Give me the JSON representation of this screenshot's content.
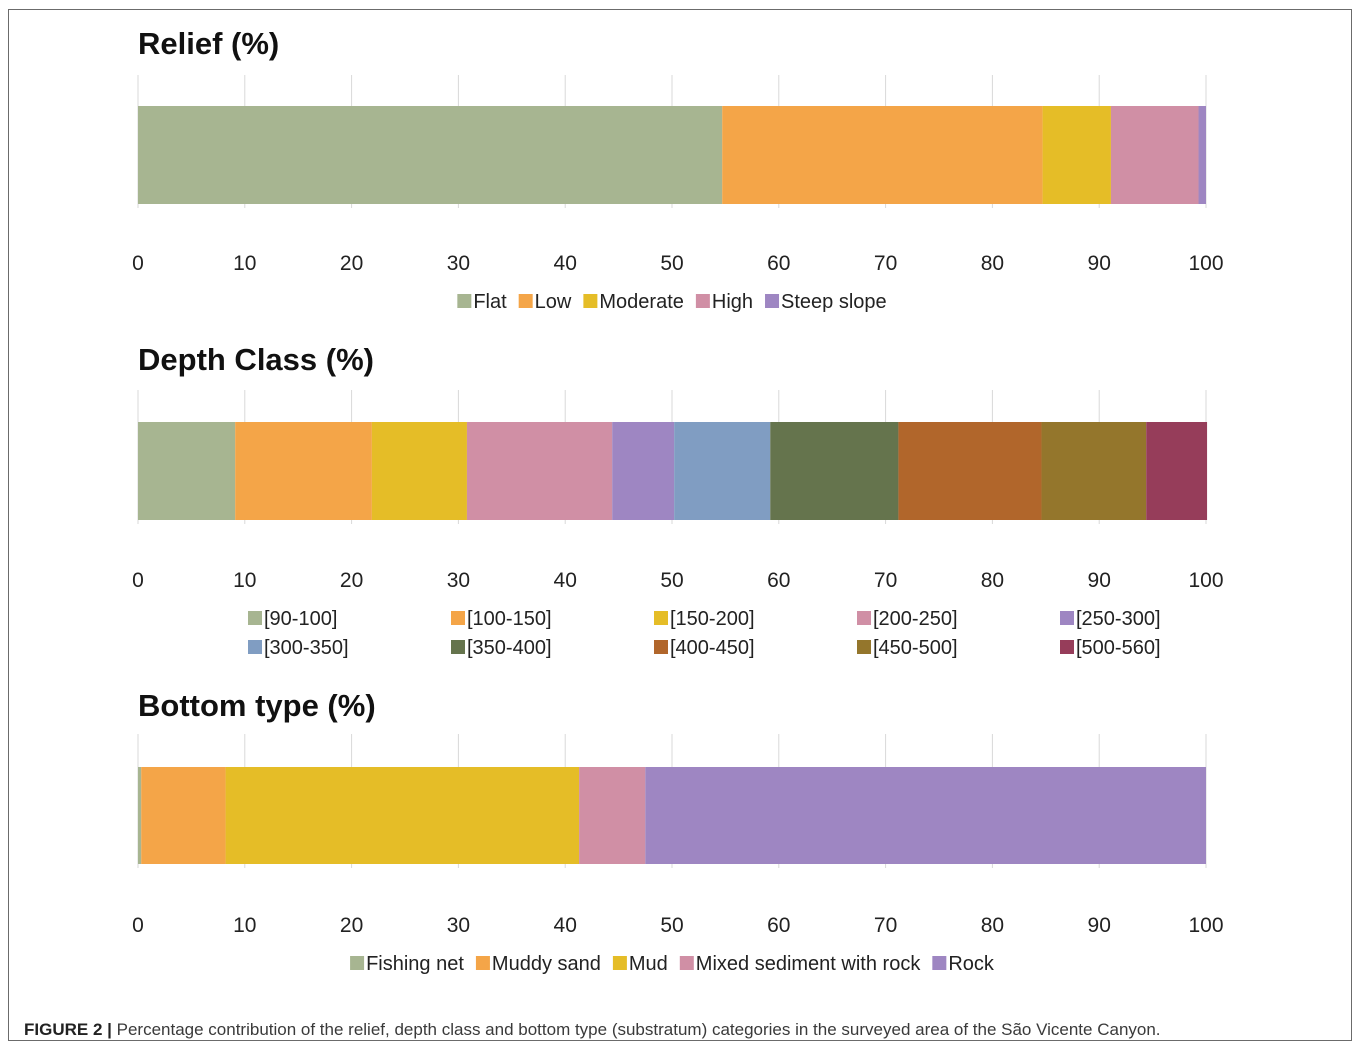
{
  "caption": {
    "label": "FIGURE 2 |",
    "text": "Percentage contribution of the relief, depth class and bottom type (substratum) categories in the surveyed area of the São Vicente Canyon."
  },
  "chart_data": [
    {
      "type": "bar",
      "orientation": "horizontal-stacked",
      "title": "Relief (%)",
      "xlim": [
        0,
        100
      ],
      "xticks": [
        0,
        10,
        20,
        30,
        40,
        50,
        60,
        70,
        80,
        90,
        100
      ],
      "grid": true,
      "legend_position": "bottom",
      "series": [
        {
          "name": "Flat",
          "value": 54.7,
          "color": "#a7b591"
        },
        {
          "name": "Low",
          "value": 30.0,
          "color": "#f4a548"
        },
        {
          "name": "Moderate",
          "value": 6.4,
          "color": "#e5bd27"
        },
        {
          "name": "High",
          "value": 8.2,
          "color": "#d08fa5"
        },
        {
          "name": "Steep slope",
          "value": 0.7,
          "color": "#9e86c2"
        }
      ]
    },
    {
      "type": "bar",
      "orientation": "horizontal-stacked",
      "title": "Depth Class (%)",
      "xlim": [
        0,
        100
      ],
      "xticks": [
        0,
        10,
        20,
        30,
        40,
        50,
        60,
        70,
        80,
        90,
        100
      ],
      "grid": true,
      "legend_position": "bottom",
      "series": [
        {
          "name": "[90-100]",
          "value": 9.1,
          "color": "#a7b591"
        },
        {
          "name": "[100-150]",
          "value": 12.8,
          "color": "#f4a548"
        },
        {
          "name": "[150-200]",
          "value": 8.9,
          "color": "#e5bd27"
        },
        {
          "name": "[200-250]",
          "value": 13.6,
          "color": "#d08fa5"
        },
        {
          "name": "[250-300]",
          "value": 5.8,
          "color": "#9e86c2"
        },
        {
          "name": "[300-350]",
          "value": 9.0,
          "color": "#809dc2"
        },
        {
          "name": "[350-400]",
          "value": 12.0,
          "color": "#65744d"
        },
        {
          "name": "[400-450]",
          "value": 13.4,
          "color": "#b1662b"
        },
        {
          "name": "[450-500]",
          "value": 9.8,
          "color": "#94762c"
        },
        {
          "name": "[500-560]",
          "value": 5.7,
          "color": "#963d5a"
        }
      ]
    },
    {
      "type": "bar",
      "orientation": "horizontal-stacked",
      "title": "Bottom type (%)",
      "xlim": [
        0,
        100
      ],
      "xticks": [
        0,
        10,
        20,
        30,
        40,
        50,
        60,
        70,
        80,
        90,
        100
      ],
      "grid": true,
      "legend_position": "bottom",
      "series": [
        {
          "name": "Fishing net",
          "value": 0.3,
          "color": "#a7b591"
        },
        {
          "name": "Muddy sand",
          "value": 7.9,
          "color": "#f4a548"
        },
        {
          "name": "Mud",
          "value": 33.1,
          "color": "#e5bd27"
        },
        {
          "name": "Mixed sediment with rock",
          "value": 6.2,
          "color": "#d08fa5"
        },
        {
          "name": "Rock",
          "value": 52.5,
          "color": "#9e86c2"
        }
      ]
    }
  ]
}
